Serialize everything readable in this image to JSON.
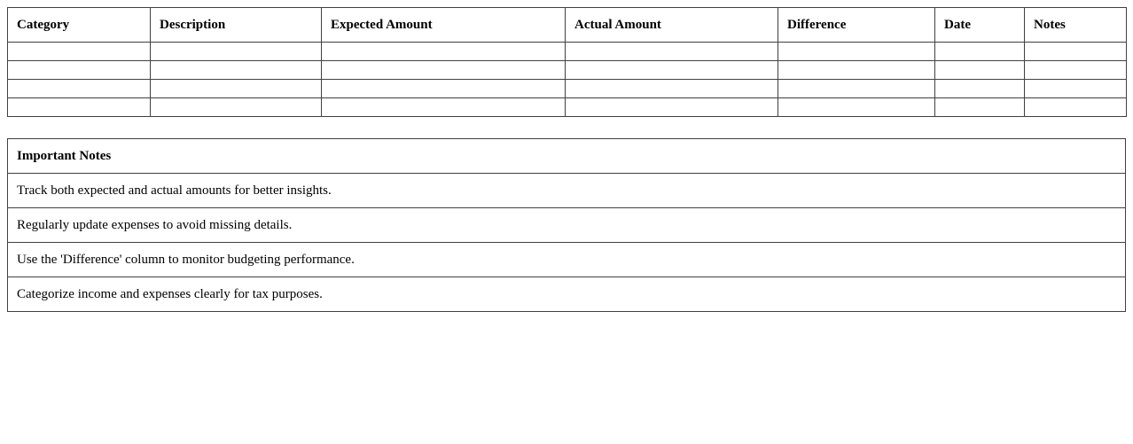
{
  "budget_table": {
    "columns": [
      "Category",
      "Description",
      "Expected Amount",
      "Actual Amount",
      "Difference",
      "Date",
      "Notes"
    ],
    "rows": [
      [
        "",
        "",
        "",
        "",
        "",
        "",
        ""
      ],
      [
        "",
        "",
        "",
        "",
        "",
        "",
        ""
      ],
      [
        "",
        "",
        "",
        "",
        "",
        "",
        ""
      ],
      [
        "",
        "",
        "",
        "",
        "",
        "",
        ""
      ]
    ]
  },
  "notes_table": {
    "title": "Important Notes",
    "items": [
      "Track both expected and actual amounts for better insights.",
      "Regularly update expenses to avoid missing details.",
      "Use the 'Difference' column to monitor budgeting performance.",
      "Categorize income and expenses clearly for tax purposes."
    ]
  }
}
